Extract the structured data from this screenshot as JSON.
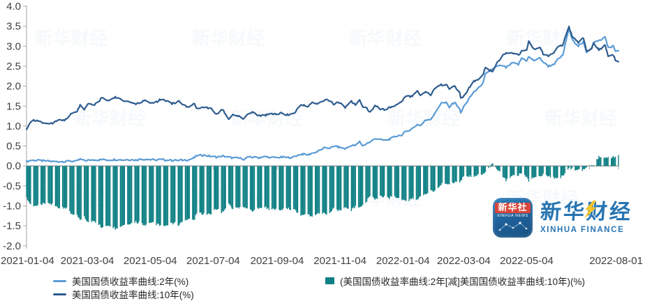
{
  "chart_data": {
    "type": "combo-line-bar",
    "x_range": [
      "2021-01-04",
      "2022-08-01"
    ],
    "x_tick_labels": [
      "2021-01-04",
      "2021-03-04",
      "2021-05-04",
      "2021-07-04",
      "2021-09-04",
      "2021-11-04",
      "2022-01-04",
      "2022-03-04",
      "2022-05-04",
      "2022-08-01"
    ],
    "x_unlabeled_ticks": [
      "2022-07-04"
    ],
    "ylim": [
      -2.0,
      4.0
    ],
    "y_ticks": [
      "4.0",
      "3.5",
      "3.0",
      "2.5",
      "2.0",
      "1.5",
      "1.0",
      "0.5",
      "0.0",
      "-0.5",
      "-1.0",
      "-1.5",
      "-2.0"
    ],
    "grid": false,
    "legend_position": "bottom",
    "frequency": "daily (weekdays, weekend gaps visible in bars)",
    "series": [
      {
        "name": "美国国债收益率曲线:2年(%)",
        "type": "line",
        "color": "#5B9BD5",
        "field": "y2"
      },
      {
        "name": "美国国债收益率曲线:10年(%)",
        "type": "line",
        "color": "#2E5C8F",
        "field": "y10"
      },
      {
        "name": "(美国国债收益率曲线:2年[减]美国国债收益率曲线:10年)(%)",
        "type": "bar",
        "color": "#0E8084",
        "field": "spread",
        "derived": "y2 - y10"
      }
    ],
    "points_format": [
      "date",
      "2y_yield_pct",
      "10y_yield_pct"
    ],
    "points": [
      [
        "2021-01-04",
        0.11,
        0.93
      ],
      [
        "2021-01-08",
        0.14,
        1.12
      ],
      [
        "2021-01-12",
        0.14,
        1.14
      ],
      [
        "2021-01-19",
        0.13,
        1.09
      ],
      [
        "2021-01-25",
        0.12,
        1.04
      ],
      [
        "2021-01-29",
        0.11,
        1.07
      ],
      [
        "2021-02-05",
        0.11,
        1.17
      ],
      [
        "2021-02-10",
        0.11,
        1.13
      ],
      [
        "2021-02-16",
        0.12,
        1.3
      ],
      [
        "2021-02-22",
        0.12,
        1.37
      ],
      [
        "2021-02-25",
        0.17,
        1.52
      ],
      [
        "2021-03-01",
        0.13,
        1.42
      ],
      [
        "2021-03-05",
        0.14,
        1.57
      ],
      [
        "2021-03-10",
        0.16,
        1.52
      ],
      [
        "2021-03-15",
        0.15,
        1.62
      ],
      [
        "2021-03-18",
        0.16,
        1.71
      ],
      [
        "2021-03-23",
        0.15,
        1.63
      ],
      [
        "2021-03-30",
        0.16,
        1.72
      ],
      [
        "2021-04-02",
        0.16,
        1.72
      ],
      [
        "2021-04-08",
        0.15,
        1.63
      ],
      [
        "2021-04-13",
        0.16,
        1.62
      ],
      [
        "2021-04-20",
        0.15,
        1.56
      ],
      [
        "2021-04-23",
        0.16,
        1.58
      ],
      [
        "2021-04-29",
        0.17,
        1.65
      ],
      [
        "2021-05-04",
        0.16,
        1.59
      ],
      [
        "2021-05-10",
        0.15,
        1.6
      ],
      [
        "2021-05-13",
        0.16,
        1.66
      ],
      [
        "2021-05-18",
        0.15,
        1.64
      ],
      [
        "2021-05-25",
        0.14,
        1.56
      ],
      [
        "2021-06-01",
        0.14,
        1.62
      ],
      [
        "2021-06-04",
        0.15,
        1.56
      ],
      [
        "2021-06-10",
        0.15,
        1.46
      ],
      [
        "2021-06-16",
        0.21,
        1.57
      ],
      [
        "2021-06-18",
        0.26,
        1.44
      ],
      [
        "2021-06-24",
        0.27,
        1.49
      ],
      [
        "2021-06-30",
        0.25,
        1.45
      ],
      [
        "2021-07-02",
        0.24,
        1.43
      ],
      [
        "2021-07-08",
        0.22,
        1.29
      ],
      [
        "2021-07-13",
        0.25,
        1.42
      ],
      [
        "2021-07-19",
        0.22,
        1.19
      ],
      [
        "2021-07-23",
        0.2,
        1.28
      ],
      [
        "2021-07-28",
        0.2,
        1.26
      ],
      [
        "2021-08-03",
        0.17,
        1.18
      ],
      [
        "2021-08-06",
        0.21,
        1.3
      ],
      [
        "2021-08-12",
        0.22,
        1.36
      ],
      [
        "2021-08-17",
        0.21,
        1.26
      ],
      [
        "2021-08-23",
        0.23,
        1.26
      ],
      [
        "2021-08-27",
        0.22,
        1.31
      ],
      [
        "2021-09-01",
        0.21,
        1.3
      ],
      [
        "2021-09-08",
        0.22,
        1.33
      ],
      [
        "2021-09-14",
        0.21,
        1.28
      ],
      [
        "2021-09-20",
        0.22,
        1.31
      ],
      [
        "2021-09-23",
        0.26,
        1.41
      ],
      [
        "2021-09-28",
        0.3,
        1.54
      ],
      [
        "2021-10-04",
        0.28,
        1.48
      ],
      [
        "2021-10-08",
        0.32,
        1.61
      ],
      [
        "2021-10-13",
        0.36,
        1.55
      ],
      [
        "2021-10-18",
        0.43,
        1.6
      ],
      [
        "2021-10-21",
        0.46,
        1.68
      ],
      [
        "2021-10-26",
        0.45,
        1.61
      ],
      [
        "2021-10-29",
        0.5,
        1.55
      ],
      [
        "2021-11-03",
        0.47,
        1.6
      ],
      [
        "2021-11-09",
        0.43,
        1.46
      ],
      [
        "2021-11-15",
        0.52,
        1.62
      ],
      [
        "2021-11-19",
        0.51,
        1.54
      ],
      [
        "2021-11-23",
        0.61,
        1.66
      ],
      [
        "2021-11-26",
        0.5,
        1.48
      ],
      [
        "2021-11-30",
        0.57,
        1.44
      ],
      [
        "2021-12-03",
        0.59,
        1.35
      ],
      [
        "2021-12-08",
        0.69,
        1.52
      ],
      [
        "2021-12-13",
        0.66,
        1.42
      ],
      [
        "2021-12-17",
        0.64,
        1.41
      ],
      [
        "2021-12-22",
        0.67,
        1.46
      ],
      [
        "2021-12-29",
        0.75,
        1.54
      ],
      [
        "2022-01-03",
        0.78,
        1.63
      ],
      [
        "2022-01-07",
        0.87,
        1.76
      ],
      [
        "2022-01-12",
        0.92,
        1.74
      ],
      [
        "2022-01-18",
        1.04,
        1.87
      ],
      [
        "2022-01-21",
        1.01,
        1.76
      ],
      [
        "2022-01-26",
        1.15,
        1.87
      ],
      [
        "2022-01-31",
        1.18,
        1.79
      ],
      [
        "2022-02-04",
        1.31,
        1.93
      ],
      [
        "2022-02-10",
        1.58,
        2.03
      ],
      [
        "2022-02-15",
        1.58,
        2.04
      ],
      [
        "2022-02-18",
        1.47,
        1.93
      ],
      [
        "2022-02-23",
        1.6,
        1.99
      ],
      [
        "2022-02-28",
        1.44,
        1.83
      ],
      [
        "2022-03-01",
        1.31,
        1.72
      ],
      [
        "2022-03-04",
        1.49,
        1.74
      ],
      [
        "2022-03-09",
        1.68,
        1.95
      ],
      [
        "2022-03-14",
        1.86,
        2.14
      ],
      [
        "2022-03-18",
        1.94,
        2.15
      ],
      [
        "2022-03-23",
        2.1,
        2.3
      ],
      [
        "2022-03-25",
        2.3,
        2.48
      ],
      [
        "2022-03-29",
        2.36,
        2.4
      ],
      [
        "2022-04-01",
        2.44,
        2.38
      ],
      [
        "2022-04-06",
        2.5,
        2.61
      ],
      [
        "2022-04-11",
        2.51,
        2.78
      ],
      [
        "2022-04-14",
        2.46,
        2.83
      ],
      [
        "2022-04-20",
        2.58,
        2.84
      ],
      [
        "2022-04-26",
        2.54,
        2.77
      ],
      [
        "2022-04-29",
        2.7,
        2.89
      ],
      [
        "2022-05-04",
        2.64,
        2.92
      ],
      [
        "2022-05-06",
        2.73,
        3.12
      ],
      [
        "2022-05-11",
        2.64,
        2.92
      ],
      [
        "2022-05-17",
        2.7,
        2.98
      ],
      [
        "2022-05-20",
        2.6,
        2.79
      ],
      [
        "2022-05-25",
        2.5,
        2.75
      ],
      [
        "2022-05-31",
        2.56,
        2.85
      ],
      [
        "2022-06-03",
        2.66,
        2.96
      ],
      [
        "2022-06-08",
        2.77,
        3.03
      ],
      [
        "2022-06-14",
        3.45,
        3.48
      ],
      [
        "2022-06-17",
        3.17,
        3.25
      ],
      [
        "2022-06-23",
        3.01,
        3.09
      ],
      [
        "2022-06-28",
        3.1,
        3.2
      ],
      [
        "2022-07-01",
        2.84,
        2.88
      ],
      [
        "2022-07-06",
        2.97,
        2.93
      ],
      [
        "2022-07-08",
        3.11,
        3.08
      ],
      [
        "2022-07-13",
        3.13,
        2.91
      ],
      [
        "2022-07-19",
        3.23,
        3.02
      ],
      [
        "2022-07-22",
        2.97,
        2.75
      ],
      [
        "2022-07-27",
        3.0,
        2.78
      ],
      [
        "2022-07-29",
        2.88,
        2.65
      ],
      [
        "2022-08-01",
        2.9,
        2.6
      ]
    ]
  },
  "axis": {
    "line_color": "#A6A6A6",
    "label_color": "#3F3F3F",
    "zero_baseline": 0.0
  },
  "legend": {
    "items": [
      {
        "label": "美国国债收益率曲线:2年(%)"
      },
      {
        "label": "美国国债收益率曲线:10年(%)"
      },
      {
        "label": "(美国国债收益率曲线:2年[减]美国国债收益率曲线:10年)(%)"
      }
    ]
  },
  "logo": {
    "cn": "新华财经",
    "en": "XINHUA FINANCE",
    "icon_cn": "新华社",
    "icon_en": "XINHUA NEWS",
    "brand_blue": "#176AAD",
    "bolt_yellow": "#F4C01D"
  }
}
